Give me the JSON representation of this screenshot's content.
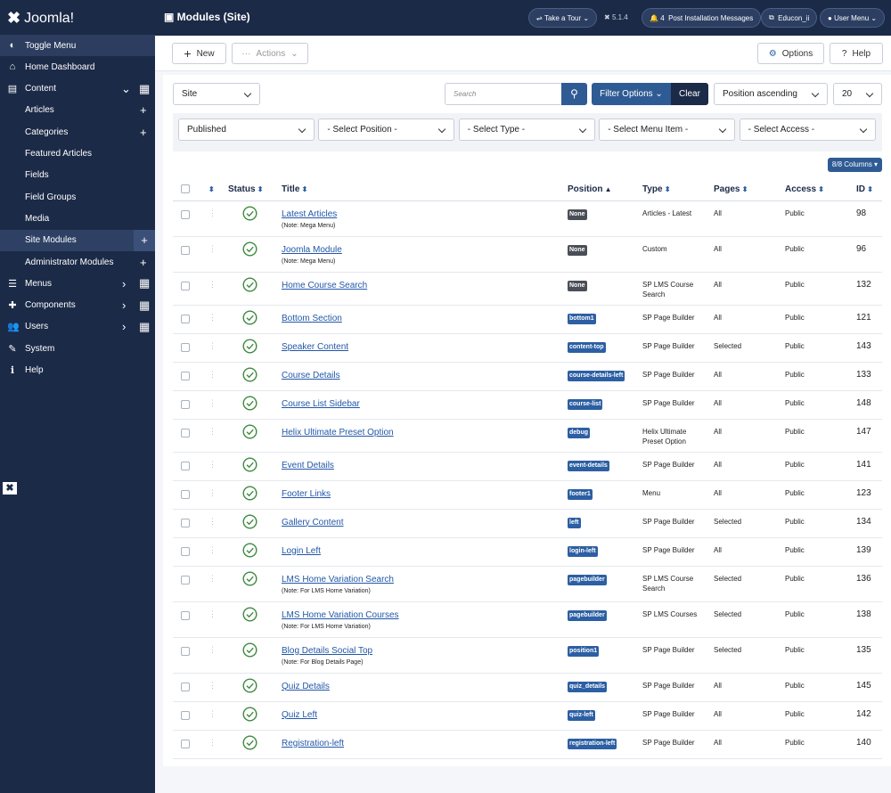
{
  "header": {
    "logo": "Joomla!",
    "page_title": "Modules (Site)",
    "take_tour": "Take a Tour",
    "version": "5.1.4",
    "notifications": "4",
    "post_install": "Post Installation Messages",
    "site_name": "Educon_ii",
    "user_menu": "User Menu"
  },
  "sidebar": {
    "toggle": "Toggle Menu",
    "menu": [
      {
        "label": "Home Dashboard"
      },
      {
        "label": "Content",
        "items": [
          "Articles",
          "Categories",
          "Featured Articles",
          "Fields",
          "Field Groups",
          "Media",
          "Site Modules",
          "Administrator Modules"
        ]
      },
      {
        "label": "Menus"
      },
      {
        "label": "Components"
      },
      {
        "label": "Users"
      },
      {
        "label": "System"
      },
      {
        "label": "Help"
      }
    ]
  },
  "toolbar": {
    "new": "New",
    "actions": "Actions",
    "options": "Options",
    "help": "Help"
  },
  "filters": {
    "client": "Site",
    "search": "Search",
    "filter_options": "Filter Options",
    "clear": "Clear",
    "ordering": "Position ascending",
    "limit": "20",
    "selects": [
      "Published",
      "- Select Position -",
      "- Select Type -",
      "- Select Menu Item -",
      "- Select Access -"
    ],
    "columns": "8/8 Columns"
  },
  "table": {
    "headers": [
      "Status",
      "Title",
      "Position",
      "Type",
      "Pages",
      "Access",
      "ID"
    ],
    "rows": [
      {
        "title": "Latest Articles",
        "note": "(Note: Mega Menu)",
        "position": "None",
        "badge": "#4a4f57",
        "type": "Articles - Latest",
        "pages": "All",
        "access": "Public",
        "id": "98"
      },
      {
        "title": "Joomla Module",
        "note": "(Note: Mega Menu)",
        "position": "None",
        "badge": "#4a4f57",
        "type": "Custom",
        "pages": "All",
        "access": "Public",
        "id": "96"
      },
      {
        "title": "Home Course Search",
        "position": "None",
        "badge": "#4a4f57",
        "type": "SP LMS Course Search",
        "pages": "All",
        "access": "Public",
        "id": "132"
      },
      {
        "title": "Bottom Section",
        "position": "bottom1",
        "badge": "#2c5fa3",
        "type": "SP Page Builder",
        "pages": "All",
        "access": "Public",
        "id": "121"
      },
      {
        "title": "Speaker Content",
        "position": "content-top",
        "badge": "#2c5fa3",
        "type": "SP Page Builder",
        "pages": "Selected",
        "access": "Public",
        "id": "143"
      },
      {
        "title": "Course Details",
        "position": "course-details-left",
        "badge": "#2c5fa3",
        "type": "SP Page Builder",
        "pages": "All",
        "access": "Public",
        "id": "133"
      },
      {
        "title": "Course List Sidebar",
        "position": "course-list",
        "badge": "#2c5fa3",
        "type": "SP Page Builder",
        "pages": "All",
        "access": "Public",
        "id": "148"
      },
      {
        "title": "Helix Ultimate Preset Option",
        "position": "debug",
        "badge": "#2c5fa3",
        "type": "Helix Ultimate Preset Option",
        "pages": "All",
        "access": "Public",
        "id": "147"
      },
      {
        "title": "Event Details",
        "position": "event-details",
        "badge": "#2c5fa3",
        "type": "SP Page Builder",
        "pages": "All",
        "access": "Public",
        "id": "141"
      },
      {
        "title": "Footer Links",
        "position": "footer1",
        "badge": "#2c5fa3",
        "type": "Menu",
        "pages": "All",
        "access": "Public",
        "id": "123"
      },
      {
        "title": "Gallery Content",
        "position": "left",
        "badge": "#2c5fa3",
        "type": "SP Page Builder",
        "pages": "Selected",
        "access": "Public",
        "id": "134"
      },
      {
        "title": "Login Left",
        "position": "login-left",
        "badge": "#2c5fa3",
        "type": "SP Page Builder",
        "pages": "All",
        "access": "Public",
        "id": "139"
      },
      {
        "title": "LMS Home Variation Search",
        "note": "(Note: For LMS Home Variation)",
        "position": "pagebuilder",
        "badge": "#2c5fa3",
        "type": "SP LMS Course Search",
        "pages": "Selected",
        "access": "Public",
        "id": "136"
      },
      {
        "title": "LMS Home Variation Courses",
        "note": "(Note: For LMS Home Variation)",
        "position": "pagebuilder",
        "badge": "#2c5fa3",
        "type": "SP LMS Courses",
        "pages": "Selected",
        "access": "Public",
        "id": "138"
      },
      {
        "title": "Blog Details Social Top",
        "note": "(Note: For Blog Details Page)",
        "position": "position1",
        "badge": "#2c5fa3",
        "type": "SP Page Builder",
        "pages": "Selected",
        "access": "Public",
        "id": "135"
      },
      {
        "title": "Quiz Details",
        "position": "quiz_details",
        "badge": "#2c5fa3",
        "type": "SP Page Builder",
        "pages": "All",
        "access": "Public",
        "id": "145"
      },
      {
        "title": "Quiz Left",
        "position": "quiz-left",
        "badge": "#2c5fa3",
        "type": "SP Page Builder",
        "pages": "All",
        "access": "Public",
        "id": "142"
      },
      {
        "title": "Registration-left",
        "position": "registration-left",
        "badge": "#2c5fa3",
        "type": "SP Page Builder",
        "pages": "All",
        "access": "Public",
        "id": "140"
      }
    ]
  }
}
